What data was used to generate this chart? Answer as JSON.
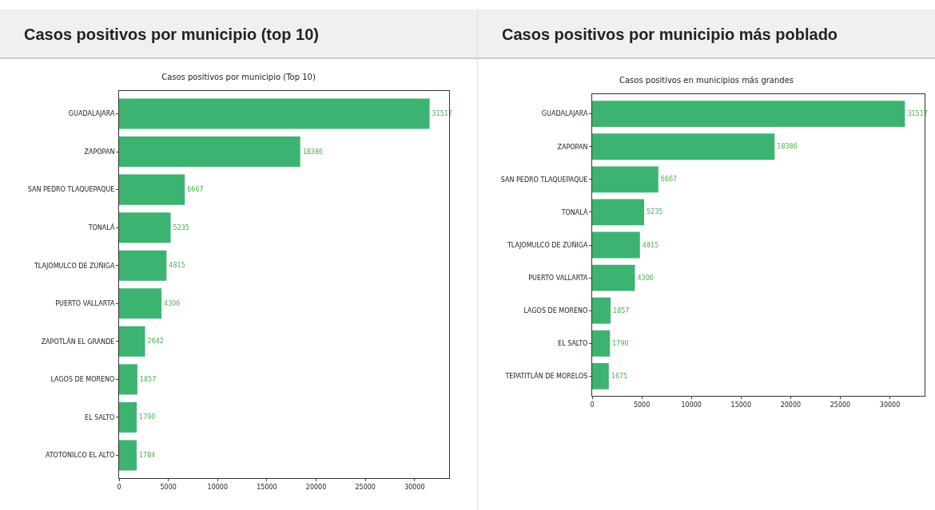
{
  "chart_data": [
    {
      "type": "bar",
      "orientation": "horizontal",
      "title": "Casos positivos por municipio (top 10)",
      "subtitle": "Casos positivos por municipio (Top 10)",
      "categories": [
        "GUADALAJARA",
        "ZAPOPAN",
        "SAN PEDRO TLAQUEPAQUE",
        "TONALÁ",
        "TLAJOMULCO DE ZÚÑIGA",
        "PUERTO VALLARTA",
        "ZAPOTLÁN EL GRANDE",
        "LAGOS DE MORENO",
        "EL SALTO",
        "ATOTONILCO EL ALTO"
      ],
      "values": [
        31517,
        18386,
        6667,
        5235,
        4815,
        4306,
        2642,
        1857,
        1790,
        1784
      ],
      "color": "#3cb371",
      "data_labels": true,
      "xlim": [
        0,
        33500
      ],
      "xticks": [
        0,
        5000,
        10000,
        15000,
        20000,
        25000,
        30000
      ],
      "grid": false
    },
    {
      "type": "bar",
      "orientation": "horizontal",
      "title": "Casos positivos por municipio más poblado",
      "subtitle": "Casos positivos en municipios más grandes",
      "categories": [
        "GUADALAJARA",
        "ZAPOPAN",
        "SAN PEDRO TLAQUEPAQUE",
        "TONALÁ",
        "TLAJOMULCO DE ZÚÑIGA",
        "PUERTO VALLARTA",
        "LAGOS DE MORENO",
        "EL SALTO",
        "TEPATITLÁN DE MORELOS"
      ],
      "values": [
        31517,
        18386,
        6667,
        5235,
        4815,
        4306,
        1857,
        1790,
        1675
      ],
      "color": "#3cb371",
      "data_labels": true,
      "xlim": [
        0,
        33500
      ],
      "xticks": [
        0,
        5000,
        10000,
        15000,
        20000,
        25000,
        30000
      ],
      "grid": false
    }
  ]
}
